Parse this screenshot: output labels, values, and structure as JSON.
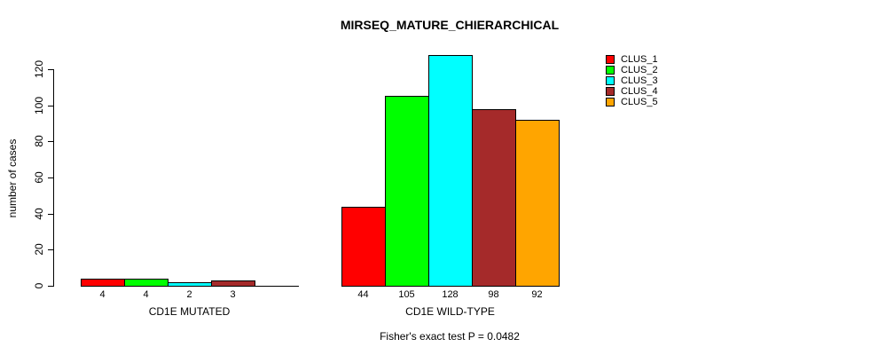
{
  "title": "MIRSEQ_MATURE_CHIERARCHICAL",
  "footer": "Fisher's exact test P = 0.0482",
  "chart_data": {
    "type": "bar",
    "title": "MIRSEQ_MATURE_CHIERARCHICAL",
    "xlabel": "",
    "ylabel": "number of cases",
    "ylim": [
      0,
      130
    ],
    "yticks": [
      0,
      20,
      40,
      60,
      80,
      100,
      120
    ],
    "grid": false,
    "legend_position": "top-right",
    "legend": [
      {
        "label": "CLUS_1",
        "color": "#FF0000"
      },
      {
        "label": "CLUS_2",
        "color": "#00FF00"
      },
      {
        "label": "CLUS_3",
        "color": "#00FFFF"
      },
      {
        "label": "CLUS_4",
        "color": "#A52A2A"
      },
      {
        "label": "CLUS_5",
        "color": "#FFA500"
      }
    ],
    "categories": [
      "CD1E MUTATED",
      "CD1E WILD-TYPE"
    ],
    "groups": [
      {
        "label": "CD1E MUTATED",
        "series": [
          "CLUS_1",
          "CLUS_2",
          "CLUS_3",
          "CLUS_4",
          "CLUS_5"
        ],
        "values": [
          4,
          4,
          2,
          3,
          0
        ],
        "bar_labels": [
          "4",
          "4",
          "2",
          "3",
          ""
        ]
      },
      {
        "label": "CD1E WILD-TYPE",
        "series": [
          "CLUS_1",
          "CLUS_2",
          "CLUS_3",
          "CLUS_4",
          "CLUS_5"
        ],
        "values": [
          44,
          105,
          128,
          98,
          92
        ],
        "bar_labels": [
          "44",
          "105",
          "128",
          "98",
          "92"
        ]
      }
    ],
    "annotation": "Fisher's exact test P = 0.0482"
  }
}
